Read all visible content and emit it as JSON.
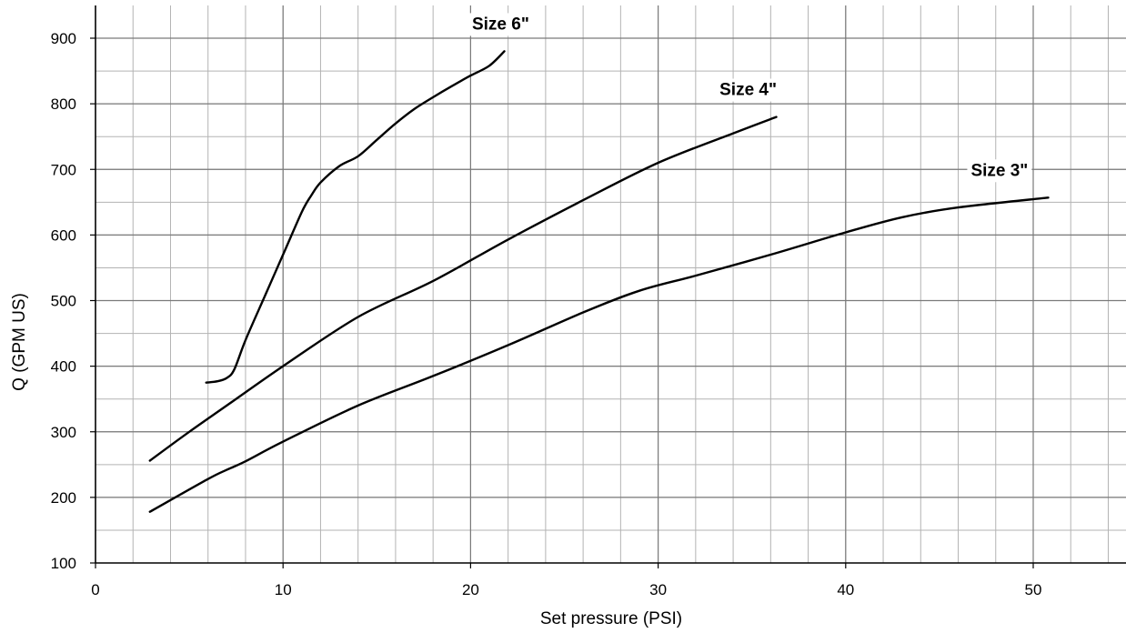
{
  "chart_data": {
    "type": "line",
    "title": "",
    "xlabel": "Set pressure (PSI)",
    "ylabel": "Q (GPM US)",
    "xlim": [
      0,
      55
    ],
    "ylim": [
      100,
      950
    ],
    "x_ticks": [
      0,
      10,
      20,
      30,
      40,
      50
    ],
    "y_ticks": [
      100,
      200,
      300,
      400,
      500,
      600,
      700,
      800,
      900
    ],
    "x_minor_step": 2,
    "y_minor_step": 50,
    "grid": true,
    "legend": "none",
    "line_color": "#000000",
    "series": [
      {
        "name": "Size 6\"",
        "x": [
          5.9,
          6.5,
          7.0,
          7.4,
          8.0,
          9.0,
          10.0,
          11.0,
          11.5,
          12.0,
          13.0,
          14.0,
          15.0,
          16.0,
          17.0,
          18.0,
          19.0,
          20.0,
          21.0,
          21.8
        ],
        "y": [
          375,
          377,
          382,
          395,
          440,
          505,
          570,
          635,
          660,
          680,
          705,
          720,
          745,
          770,
          792,
          810,
          827,
          843,
          858,
          880
        ]
      },
      {
        "name": "Size 4\"",
        "x": [
          2.9,
          5.0,
          7.0,
          10.0,
          14.0,
          18.0,
          22.0,
          26.0,
          30.0,
          34.0,
          36.3
        ],
        "y": [
          256,
          300,
          340,
          400,
          475,
          530,
          593,
          653,
          710,
          755,
          780
        ]
      },
      {
        "name": "Size 3\"",
        "x": [
          2.9,
          6.0,
          7.0,
          8.0,
          10.0,
          14.0,
          18.0,
          22.0,
          26.0,
          29.0,
          32.0,
          36.0,
          40.0,
          43.0,
          46.0,
          50.8
        ],
        "y": [
          178,
          228,
          242,
          255,
          285,
          340,
          385,
          432,
          482,
          515,
          538,
          570,
          604,
          627,
          642,
          657
        ]
      }
    ]
  }
}
